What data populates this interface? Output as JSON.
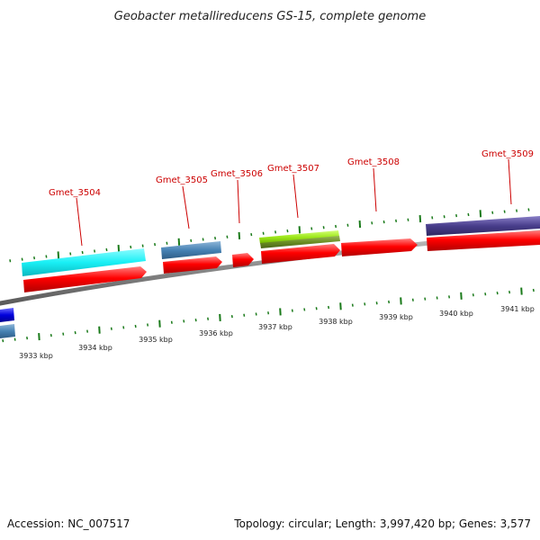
{
  "title": "Geobacter metallireducens GS-15, complete genome",
  "footer": {
    "accession": "Accession: NC_007517",
    "summary": "Topology: circular; Length: 3,997,420 bp; Genes: 3,577"
  },
  "gene_labels": [
    "Gmet_3504",
    "Gmet_3505",
    "Gmet_3506",
    "Gmet_3507",
    "Gmet_3508",
    "Gmet_3509"
  ],
  "scale_labels": [
    "3933 kbp",
    "3934 kbp",
    "3935 kbp",
    "3936 kbp",
    "3937 kbp",
    "3938 kbp",
    "3939 kbp",
    "3940 kbp",
    "3941 kbp"
  ],
  "colors": {
    "cds": "#ff0000",
    "backbone": "#8a8a8a",
    "tick": "#1a7a1a",
    "label": "#cc0000",
    "feature_cyan": "#19f0f5",
    "feature_steel": "#4682b4",
    "feature_lime": "#9de81a",
    "feature_olive": "#6b8e23",
    "feature_purple": "#483d8b",
    "feature_blue": "#0000dd"
  }
}
